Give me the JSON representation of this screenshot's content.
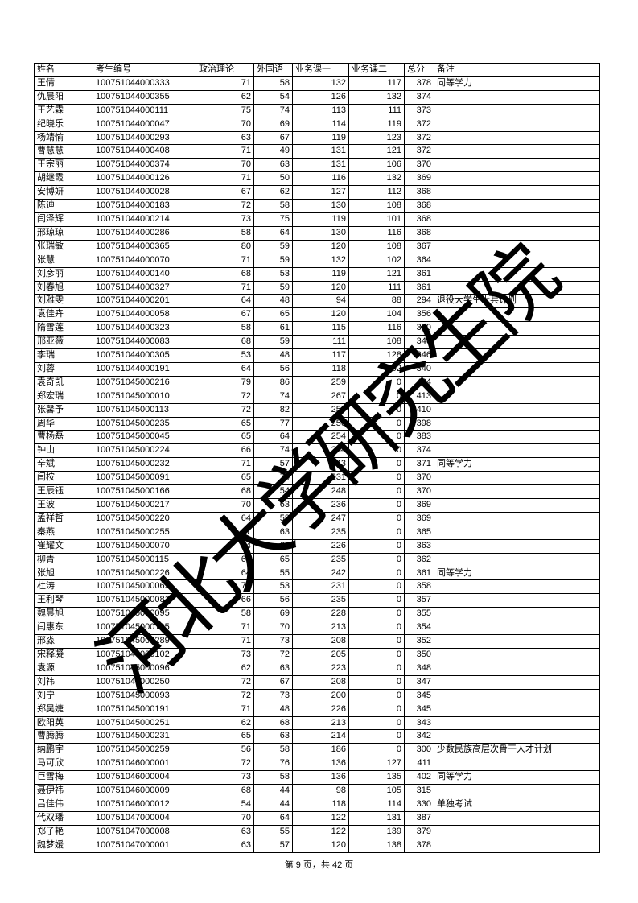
{
  "page": {
    "watermark": "河北大学研究生院",
    "footer": "第 9 页，共 42 页"
  },
  "table": {
    "columns": [
      {
        "key": "name",
        "label": "姓名",
        "numeric": false
      },
      {
        "key": "id",
        "label": "考生编号",
        "numeric": false
      },
      {
        "key": "politics",
        "label": "政治理论",
        "numeric": true
      },
      {
        "key": "foreign",
        "label": "外国语",
        "numeric": true
      },
      {
        "key": "course1",
        "label": "业务课一",
        "numeric": true
      },
      {
        "key": "course2",
        "label": "业务课二",
        "numeric": true
      },
      {
        "key": "total",
        "label": "总分",
        "numeric": true
      },
      {
        "key": "remark",
        "label": "备注",
        "numeric": false
      }
    ],
    "rows": [
      [
        "王倩",
        "100751044000333",
        71,
        58,
        132,
        117,
        378,
        "同等学力"
      ],
      [
        "仇晨阳",
        "100751044000355",
        62,
        54,
        126,
        132,
        374,
        ""
      ],
      [
        "王艺霖",
        "100751044000111",
        75,
        74,
        113,
        111,
        373,
        ""
      ],
      [
        "纪晓乐",
        "100751044000047",
        70,
        69,
        114,
        119,
        372,
        ""
      ],
      [
        "杨靖愉",
        "100751044000293",
        63,
        67,
        119,
        123,
        372,
        ""
      ],
      [
        "曹慧慧",
        "100751044000408",
        71,
        49,
        131,
        121,
        372,
        ""
      ],
      [
        "王宗丽",
        "100751044000374",
        70,
        63,
        131,
        106,
        370,
        ""
      ],
      [
        "胡继霞",
        "100751044000126",
        71,
        50,
        116,
        132,
        369,
        ""
      ],
      [
        "安博妍",
        "100751044000028",
        67,
        62,
        127,
        112,
        368,
        ""
      ],
      [
        "陈迪",
        "100751044000183",
        72,
        58,
        130,
        108,
        368,
        ""
      ],
      [
        "闫泽辉",
        "100751044000214",
        73,
        75,
        119,
        101,
        368,
        ""
      ],
      [
        "邢琼琼",
        "100751044000286",
        58,
        64,
        130,
        116,
        368,
        ""
      ],
      [
        "张瑞敏",
        "100751044000365",
        80,
        59,
        120,
        108,
        367,
        ""
      ],
      [
        "张慧",
        "100751044000070",
        71,
        59,
        132,
        102,
        364,
        ""
      ],
      [
        "刘彦丽",
        "100751044000140",
        68,
        53,
        119,
        121,
        361,
        ""
      ],
      [
        "刘春旭",
        "100751044000327",
        71,
        59,
        120,
        111,
        361,
        ""
      ],
      [
        "刘雅雯",
        "100751044000201",
        64,
        48,
        94,
        88,
        294,
        "退役大学生士兵计划"
      ],
      [
        "袁佳卉",
        "100751044000058",
        67,
        65,
        120,
        104,
        356,
        ""
      ],
      [
        "隋雪莲",
        "100751044000323",
        58,
        61,
        115,
        116,
        350,
        ""
      ],
      [
        "邢亚薇",
        "100751044000083",
        68,
        59,
        111,
        108,
        346,
        ""
      ],
      [
        "李瑞",
        "100751044000305",
        53,
        48,
        117,
        128,
        346,
        ""
      ],
      [
        "刘蓉",
        "100751044000191",
        64,
        56,
        118,
        102,
        340,
        ""
      ],
      [
        "袁奇凯",
        "100751045000216",
        79,
        86,
        259,
        0,
        424,
        ""
      ],
      [
        "郑宏瑞",
        "100751045000010",
        72,
        74,
        267,
        0,
        413,
        ""
      ],
      [
        "张馨予",
        "100751045000113",
        72,
        82,
        256,
        0,
        410,
        ""
      ],
      [
        "周华",
        "100751045000235",
        65,
        77,
        256,
        0,
        398,
        ""
      ],
      [
        "曹杨磊",
        "100751045000045",
        65,
        64,
        254,
        0,
        383,
        ""
      ],
      [
        "钟山",
        "100751045000224",
        66,
        74,
        234,
        0,
        374,
        ""
      ],
      [
        "辛斌",
        "100751045000232",
        71,
        57,
        243,
        0,
        371,
        "同等学力"
      ],
      [
        "闫桉",
        "100751045000091",
        65,
        74,
        231,
        0,
        370,
        ""
      ],
      [
        "王辰钰",
        "100751045000166",
        68,
        54,
        248,
        0,
        370,
        ""
      ],
      [
        "王波",
        "100751045000217",
        70,
        63,
        236,
        0,
        369,
        ""
      ],
      [
        "孟祥哲",
        "100751045000220",
        64,
        58,
        247,
        0,
        369,
        ""
      ],
      [
        "秦燕",
        "100751045000255",
        67,
        63,
        235,
        0,
        365,
        ""
      ],
      [
        "崔耀文",
        "100751045000070",
        74,
        63,
        226,
        0,
        363,
        ""
      ],
      [
        "柳青",
        "100751045000115",
        62,
        65,
        235,
        0,
        362,
        ""
      ],
      [
        "张旭",
        "100751045000226",
        64,
        55,
        242,
        0,
        361,
        "同等学力"
      ],
      [
        "杜涛",
        "100751045000062",
        74,
        53,
        231,
        0,
        358,
        ""
      ],
      [
        "王利琴",
        "100751045000081",
        66,
        56,
        235,
        0,
        357,
        ""
      ],
      [
        "魏晨旭",
        "100751045000095",
        58,
        69,
        228,
        0,
        355,
        ""
      ],
      [
        "闫惠东",
        "100751045000105",
        71,
        70,
        213,
        0,
        354,
        ""
      ],
      [
        "邢淼",
        "100751045000289",
        71,
        73,
        208,
        0,
        352,
        ""
      ],
      [
        "宋释凝",
        "100751045000102",
        73,
        72,
        205,
        0,
        350,
        ""
      ],
      [
        "袁源",
        "100751045000096",
        62,
        63,
        223,
        0,
        348,
        ""
      ],
      [
        "刘祎",
        "100751045000250",
        72,
        67,
        208,
        0,
        347,
        ""
      ],
      [
        "刘宁",
        "100751045000093",
        72,
        73,
        200,
        0,
        345,
        ""
      ],
      [
        "郑昊婕",
        "100751045000191",
        71,
        48,
        226,
        0,
        345,
        ""
      ],
      [
        "欧阳英",
        "100751045000251",
        62,
        68,
        213,
        0,
        343,
        ""
      ],
      [
        "曹腾腾",
        "100751045000231",
        65,
        63,
        214,
        0,
        342,
        ""
      ],
      [
        "纳鹏宇",
        "100751045000259",
        56,
        58,
        186,
        0,
        300,
        "少数民族高层次骨干人才计划"
      ],
      [
        "马可欣",
        "100751046000001",
        72,
        76,
        136,
        127,
        411,
        ""
      ],
      [
        "巨雪梅",
        "100751046000004",
        73,
        58,
        136,
        135,
        402,
        "同等学力"
      ],
      [
        "聂伊祎",
        "100751046000009",
        68,
        44,
        98,
        105,
        315,
        ""
      ],
      [
        "吕佳伟",
        "100751046000012",
        54,
        44,
        118,
        114,
        330,
        "单独考试"
      ],
      [
        "代双璠",
        "100751047000004",
        70,
        64,
        122,
        131,
        387,
        ""
      ],
      [
        "郑子艳",
        "100751047000008",
        63,
        55,
        122,
        139,
        379,
        ""
      ],
      [
        "魏梦媛",
        "100751047000001",
        63,
        57,
        120,
        138,
        378,
        ""
      ]
    ]
  }
}
